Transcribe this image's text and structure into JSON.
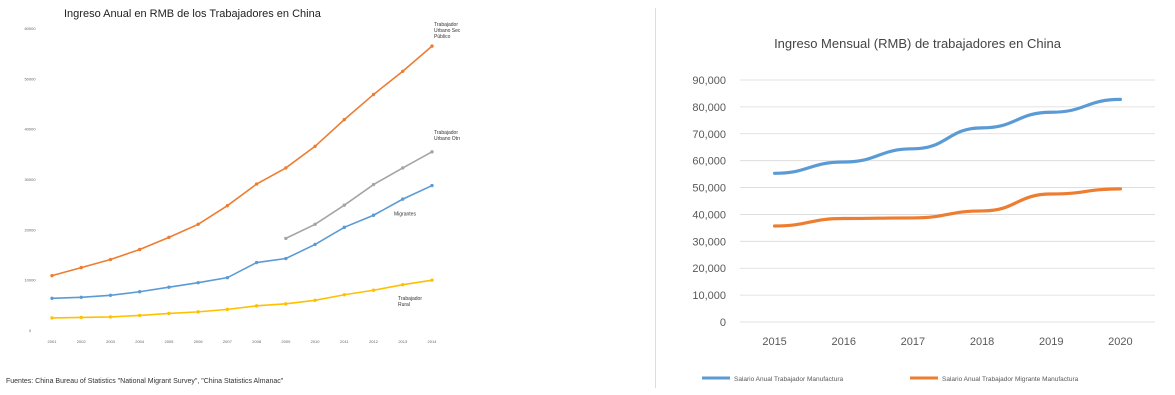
{
  "chart_data": [
    {
      "type": "line",
      "title": "Ingreso Anual en RMB de los Trabajadores en China",
      "xlabel": "",
      "ylabel": "",
      "categories": [
        "2001",
        "2002",
        "2003",
        "2004",
        "2005",
        "2006",
        "2007",
        "2008",
        "2009",
        "2010",
        "2011",
        "2012",
        "2013",
        "2014"
      ],
      "y_ticks": [
        "0",
        "10000",
        "20000",
        "30000",
        "40000",
        "50000",
        "60000"
      ],
      "ylim": [
        0,
        60000
      ],
      "grid": false,
      "series": [
        {
          "name": "Trabajador Urbano Sector Público",
          "color": "#ed7d31",
          "marker": true,
          "values": [
            10800,
            12400,
            14000,
            16000,
            18400,
            21000,
            24700,
            29000,
            32200,
            36500,
            41800,
            46800,
            51400,
            56400
          ]
        },
        {
          "name": "Trabajador Urbano Otros",
          "color": "#a5a5a5",
          "marker": true,
          "values": [
            null,
            null,
            null,
            null,
            null,
            null,
            null,
            null,
            18200,
            21000,
            24800,
            28900,
            32200,
            35400
          ]
        },
        {
          "name": "Migrantes",
          "color": "#5b9bd5",
          "marker": true,
          "values": [
            6300,
            6500,
            6900,
            7600,
            8500,
            9400,
            10400,
            13400,
            14200,
            17000,
            20400,
            22800,
            26000,
            28700
          ]
        },
        {
          "name": "Trabajador Rural",
          "color": "#ffc000",
          "marker": true,
          "values": [
            2400,
            2500,
            2600,
            2900,
            3300,
            3600,
            4100,
            4800,
            5200,
            5900,
            7000,
            7900,
            9000,
            9900
          ]
        }
      ]
    },
    {
      "type": "line",
      "title": "Ingreso Mensual (RMB) de trabajadores en China",
      "xlabel": "",
      "ylabel": "",
      "categories": [
        "2015",
        "2016",
        "2017",
        "2018",
        "2019",
        "2020"
      ],
      "y_ticks": [
        "0",
        "10,000",
        "20,000",
        "30,000",
        "40,000",
        "50,000",
        "60,000",
        "70,000",
        "80,000",
        "90,000"
      ],
      "ylim": [
        0,
        90000
      ],
      "grid": true,
      "legend": "bottom",
      "series": [
        {
          "name": "Salario Anual Trabajador Manufactura",
          "color": "#5b9bd5",
          "values": [
            55300,
            59500,
            64400,
            72200,
            78000,
            82800
          ]
        },
        {
          "name": "Salario Anual Trabajador Migrante Manufactura",
          "color": "#ed7d31",
          "values": [
            35700,
            38500,
            38700,
            41300,
            47600,
            49500
          ]
        }
      ]
    }
  ],
  "source_text": "Fuentes: China Bureau of Statistics \"National Migrant Survey\", \"China Statistics Almanac\""
}
